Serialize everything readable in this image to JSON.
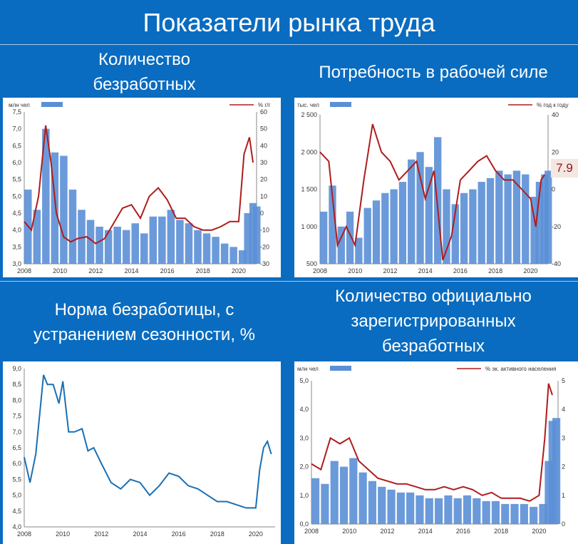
{
  "main_title": "Показатели рынка труда",
  "panels": {
    "p1": {
      "title_line1": "Количество",
      "title_line2": "безработных"
    },
    "p2": {
      "title_line1": "Потребность в рабочей силе"
    },
    "p3": {
      "title_line1": "Норма безработицы, с",
      "title_line2": "устранением сезонности, %"
    },
    "p4": {
      "title_line1": "Количество официально",
      "title_line2": "зарегистрированных",
      "title_line3": "безработных"
    }
  },
  "colors": {
    "background": "#0a6cc0",
    "bar": "#5b8fd6",
    "line": "#b01c1c",
    "line_blue": "#1a6fb3"
  },
  "chart_data": [
    {
      "type": "bar",
      "legend_left": "млн чел",
      "legend_right": "% г/г",
      "x_ticks": [
        "2008",
        "2010",
        "2012",
        "2014",
        "2016",
        "2018",
        "2020"
      ],
      "x_range": [
        2008,
        2021
      ],
      "y_left_ticks": [
        "3,0",
        "3,5",
        "4,0",
        "4,5",
        "5,0",
        "5,5",
        "6,0",
        "6,5",
        "7,0",
        "7,5"
      ],
      "y_left_range": [
        3.0,
        7.5
      ],
      "y_right_ticks": [
        "-30",
        "-20",
        "-10",
        "0",
        "10",
        "20",
        "30",
        "40",
        "50",
        "60"
      ],
      "y_right_range": [
        -30,
        60
      ],
      "bars": {
        "x": [
          2008.0,
          2008.5,
          2009.0,
          2009.5,
          2010.0,
          2010.5,
          2011.0,
          2011.5,
          2012.0,
          2012.5,
          2013.0,
          2013.5,
          2014.0,
          2014.5,
          2015.0,
          2015.5,
          2016.0,
          2016.5,
          2017.0,
          2017.5,
          2018.0,
          2018.5,
          2019.0,
          2019.5,
          2020.0,
          2020.3,
          2020.6,
          2020.8
        ],
        "values": [
          5.2,
          4.6,
          7.0,
          6.3,
          6.2,
          5.2,
          4.6,
          4.3,
          4.1,
          4.0,
          4.1,
          4.0,
          4.2,
          3.9,
          4.4,
          4.4,
          4.6,
          4.3,
          4.2,
          4.0,
          3.9,
          3.8,
          3.6,
          3.5,
          3.4,
          4.5,
          4.8,
          4.7
        ]
      },
      "line": {
        "x": [
          2008.0,
          2008.4,
          2008.8,
          2009.2,
          2009.5,
          2009.8,
          2010.2,
          2010.6,
          2011.0,
          2011.5,
          2012.0,
          2012.5,
          2013.0,
          2013.5,
          2014.0,
          2014.5,
          2015.0,
          2015.5,
          2016.0,
          2016.5,
          2017.0,
          2017.5,
          2018.0,
          2018.5,
          2019.0,
          2019.5,
          2020.0,
          2020.3,
          2020.6,
          2020.8
        ],
        "values": [
          -5,
          -10,
          10,
          52,
          30,
          0,
          -14,
          -17,
          -15,
          -14,
          -18,
          -15,
          -6,
          3,
          5,
          -3,
          10,
          15,
          8,
          -3,
          -3,
          -8,
          -10,
          -10,
          -8,
          -5,
          -5,
          35,
          45,
          30
        ]
      }
    },
    {
      "type": "bar",
      "legend_left": "тыс. чел",
      "legend_right": "% год к году",
      "label_value": "7.9",
      "x_ticks": [
        "2008",
        "2010",
        "2012",
        "2014",
        "2016",
        "2018",
        "2020"
      ],
      "x_range": [
        2008,
        2021
      ],
      "y_left_ticks": [
        "500",
        "1 000",
        "1 500",
        "2 000",
        "2 500"
      ],
      "y_left_range": [
        500,
        2500
      ],
      "y_right_ticks": [
        "-40",
        "-20",
        "0",
        "20",
        "40"
      ],
      "y_right_range": [
        -40,
        40
      ],
      "bars": {
        "x": [
          2008.0,
          2008.5,
          2009.0,
          2009.5,
          2010.0,
          2010.5,
          2011.0,
          2011.5,
          2012.0,
          2012.5,
          2013.0,
          2013.5,
          2014.0,
          2014.5,
          2015.0,
          2015.5,
          2016.0,
          2016.5,
          2017.0,
          2017.5,
          2018.0,
          2018.5,
          2019.0,
          2019.5,
          2020.0,
          2020.3,
          2020.6,
          2020.8
        ],
        "values": [
          1200,
          1550,
          1000,
          1200,
          850,
          1250,
          1350,
          1450,
          1500,
          1600,
          1900,
          2000,
          1800,
          2200,
          1500,
          1300,
          1450,
          1500,
          1600,
          1650,
          1750,
          1700,
          1750,
          1700,
          1400,
          1600,
          1700,
          1750
        ]
      },
      "line": {
        "x": [
          2008.0,
          2008.5,
          2009.0,
          2009.5,
          2010.0,
          2010.5,
          2011.0,
          2011.5,
          2012.0,
          2012.5,
          2013.0,
          2013.5,
          2014.0,
          2014.5,
          2015.0,
          2015.5,
          2016.0,
          2016.5,
          2017.0,
          2017.5,
          2018.0,
          2018.5,
          2019.0,
          2019.5,
          2020.0,
          2020.3,
          2020.6,
          2020.8
        ],
        "values": [
          20,
          15,
          -30,
          -20,
          -30,
          5,
          35,
          20,
          15,
          5,
          10,
          15,
          -5,
          10,
          -38,
          -25,
          5,
          10,
          15,
          18,
          10,
          5,
          5,
          0,
          -5,
          -20,
          5,
          7.9
        ]
      }
    },
    {
      "type": "line",
      "x_ticks": [
        "2008",
        "2010",
        "2012",
        "2014",
        "2016",
        "2018",
        "2020"
      ],
      "x_range": [
        2008,
        2021
      ],
      "y_ticks": [
        "4,0",
        "4,5",
        "5,0",
        "5,5",
        "6,0",
        "6,5",
        "7,0",
        "7,5",
        "8,0",
        "8,5",
        "9,0"
      ],
      "y_range": [
        4.0,
        9.0
      ],
      "series": [
        {
          "x": [
            2008.0,
            2008.3,
            2008.6,
            2009.0,
            2009.2,
            2009.5,
            2009.8,
            2010.0,
            2010.3,
            2010.6,
            2011.0,
            2011.3,
            2011.6,
            2012.0,
            2012.5,
            2013.0,
            2013.5,
            2014.0,
            2014.5,
            2015.0,
            2015.5,
            2016.0,
            2016.5,
            2017.0,
            2017.5,
            2018.0,
            2018.5,
            2019.0,
            2019.5,
            2020.0,
            2020.2,
            2020.4,
            2020.6,
            2020.8
          ],
          "values": [
            6.2,
            5.4,
            6.3,
            8.8,
            8.5,
            8.5,
            7.9,
            8.6,
            7.0,
            7.0,
            7.1,
            6.4,
            6.5,
            6.0,
            5.4,
            5.2,
            5.5,
            5.4,
            5.0,
            5.3,
            5.7,
            5.6,
            5.3,
            5.2,
            5.0,
            4.8,
            4.8,
            4.7,
            4.6,
            4.6,
            5.8,
            6.5,
            6.7,
            6.3
          ]
        }
      ]
    },
    {
      "type": "bar",
      "legend_left": "млн чел",
      "legend_right": "% эк. активного населения",
      "x_ticks": [
        "2008",
        "2010",
        "2012",
        "2014",
        "2016",
        "2018",
        "2020"
      ],
      "x_range": [
        2008,
        2021
      ],
      "y_left_ticks": [
        "0,0",
        "1,0",
        "2,0",
        "3,0",
        "4,0",
        "5,0"
      ],
      "y_left_range": [
        0,
        5
      ],
      "y_right_ticks": [
        "0",
        "1",
        "2",
        "3",
        "4",
        "5"
      ],
      "y_right_range": [
        0,
        5
      ],
      "bars": {
        "x": [
          2008.0,
          2008.5,
          2009.0,
          2009.5,
          2010.0,
          2010.5,
          2011.0,
          2011.5,
          2012.0,
          2012.5,
          2013.0,
          2013.5,
          2014.0,
          2014.5,
          2015.0,
          2015.5,
          2016.0,
          2016.5,
          2017.0,
          2017.5,
          2018.0,
          2018.5,
          2019.0,
          2019.5,
          2020.0,
          2020.3,
          2020.5,
          2020.7
        ],
        "values": [
          1.6,
          1.4,
          2.2,
          2.0,
          2.3,
          1.8,
          1.5,
          1.3,
          1.2,
          1.1,
          1.1,
          1.0,
          0.9,
          0.9,
          1.0,
          0.9,
          1.0,
          0.9,
          0.8,
          0.8,
          0.7,
          0.7,
          0.7,
          0.6,
          0.7,
          2.2,
          3.6,
          3.7
        ]
      },
      "line": {
        "x": [
          2008.0,
          2008.5,
          2009.0,
          2009.5,
          2010.0,
          2010.5,
          2011.0,
          2011.5,
          2012.0,
          2012.5,
          2013.0,
          2013.5,
          2014.0,
          2014.5,
          2015.0,
          2015.5,
          2016.0,
          2016.5,
          2017.0,
          2017.5,
          2018.0,
          2018.5,
          2019.0,
          2019.5,
          2020.0,
          2020.3,
          2020.5,
          2020.7
        ],
        "values": [
          2.1,
          1.9,
          3.0,
          2.8,
          3.0,
          2.2,
          1.9,
          1.6,
          1.5,
          1.4,
          1.4,
          1.3,
          1.2,
          1.2,
          1.3,
          1.2,
          1.3,
          1.2,
          1.0,
          1.1,
          0.9,
          0.9,
          0.9,
          0.8,
          1.0,
          3.0,
          4.9,
          4.5
        ]
      }
    }
  ]
}
